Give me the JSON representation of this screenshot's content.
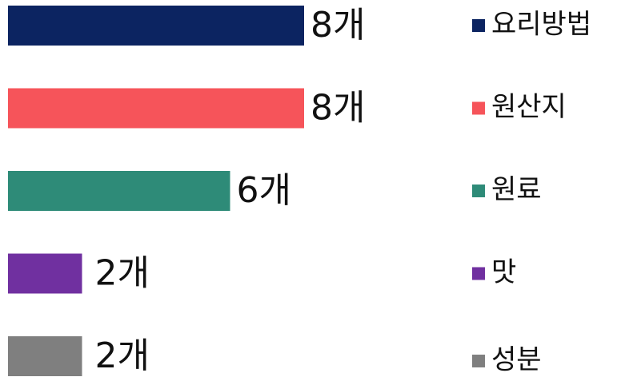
{
  "chart_data": {
    "type": "hbar",
    "categories": [
      "요리방법",
      "원산지",
      "원료",
      "맛",
      "성분"
    ],
    "values": [
      8,
      8,
      6,
      2,
      2
    ],
    "value_labels": [
      "8개",
      "8개",
      "6개",
      "2개",
      "2개"
    ],
    "colors": [
      "#0c2461",
      "#f6545a",
      "#2e8b78",
      "#7030a0",
      "#7f7f7f"
    ],
    "xlim": [
      0,
      8
    ],
    "legend": "right"
  }
}
